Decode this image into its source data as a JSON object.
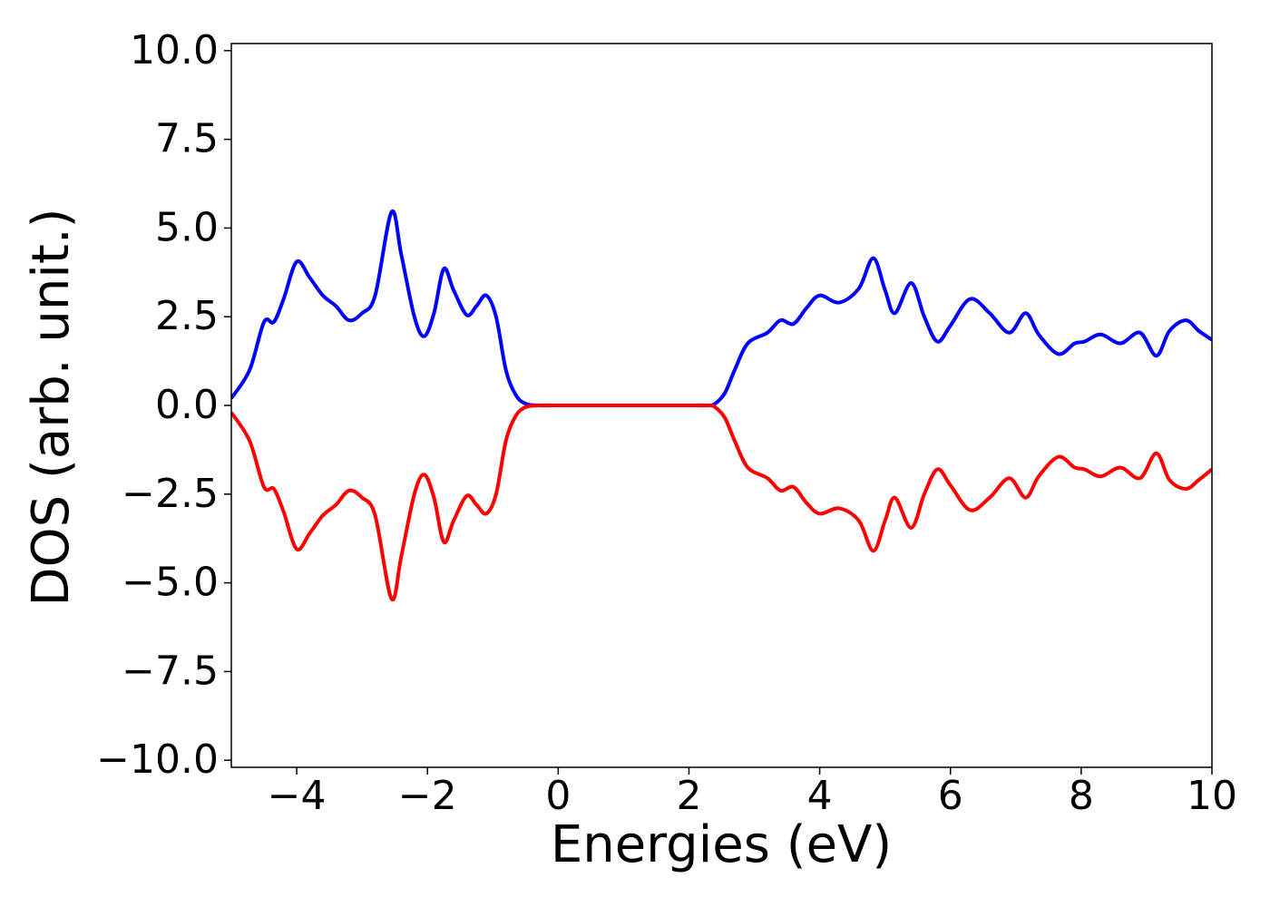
{
  "chart_data": {
    "type": "line",
    "xlabel": "Energies (eV)",
    "ylabel": "DOS (arb. unit.)",
    "x": [
      -5,
      -4.72,
      -4.5,
      -4.35,
      -4.2,
      -4.0,
      -3.8,
      -3.6,
      -3.4,
      -3.2,
      -3.0,
      -2.8,
      -2.55,
      -2.4,
      -2.2,
      -2.05,
      -1.9,
      -1.75,
      -1.6,
      -1.4,
      -1.25,
      -1.1,
      -0.95,
      -0.8,
      -0.65,
      -0.5,
      -0.3,
      0,
      1,
      2,
      2.3,
      2.4,
      2.55,
      2.7,
      2.9,
      3.2,
      3.4,
      3.6,
      3.8,
      4.0,
      4.3,
      4.6,
      4.82,
      5.0,
      5.15,
      5.4,
      5.6,
      5.8,
      6.0,
      6.3,
      6.6,
      6.9,
      7.15,
      7.35,
      7.65,
      7.9,
      8.05,
      8.3,
      8.6,
      8.9,
      9.15,
      9.35,
      9.6,
      9.8,
      10
    ],
    "series": [
      {
        "color": "#0000ff",
        "values": [
          0.2,
          1.0,
          2.35,
          2.35,
          3.0,
          4.05,
          3.6,
          3.1,
          2.8,
          2.4,
          2.6,
          3.1,
          5.45,
          4.25,
          2.5,
          1.95,
          2.6,
          3.85,
          3.25,
          2.55,
          2.8,
          3.1,
          2.5,
          1.0,
          0.3,
          0.05,
          0,
          0,
          0,
          0,
          0,
          0.05,
          0.35,
          1.0,
          1.75,
          2.05,
          2.4,
          2.3,
          2.75,
          3.1,
          2.9,
          3.3,
          4.15,
          3.25,
          2.6,
          3.45,
          2.5,
          1.8,
          2.25,
          3.0,
          2.6,
          2.05,
          2.6,
          2.0,
          1.45,
          1.75,
          1.8,
          2.0,
          1.75,
          2.05,
          1.4,
          2.1,
          2.4,
          2.1,
          1.85
        ]
      },
      {
        "color": "#ff0000",
        "values": [
          -0.2,
          -1.0,
          -2.3,
          -2.35,
          -3.0,
          -4.05,
          -3.6,
          -3.1,
          -2.8,
          -2.4,
          -2.6,
          -3.1,
          -5.45,
          -4.25,
          -2.5,
          -1.95,
          -2.6,
          -3.85,
          -3.25,
          -2.55,
          -2.8,
          -3.05,
          -2.5,
          -1.0,
          -0.3,
          -0.05,
          0,
          0,
          0,
          0,
          0,
          -0.05,
          -0.35,
          -1.0,
          -1.75,
          -2.05,
          -2.4,
          -2.3,
          -2.75,
          -3.05,
          -2.9,
          -3.25,
          -4.1,
          -3.25,
          -2.6,
          -3.45,
          -2.5,
          -1.8,
          -2.25,
          -2.95,
          -2.6,
          -2.05,
          -2.6,
          -2.0,
          -1.45,
          -1.75,
          -1.8,
          -2.0,
          -1.75,
          -2.05,
          -1.35,
          -2.1,
          -2.35,
          -2.1,
          -1.8
        ]
      }
    ],
    "xlim": [
      -5,
      10
    ],
    "xticks": [
      {
        "value": -4,
        "label": "−4"
      },
      {
        "value": -2,
        "label": "−2"
      },
      0,
      2,
      4,
      6,
      8,
      10
    ],
    "ylim": [
      -10.2,
      10.2
    ],
    "yticks": [
      {
        "value": 10,
        "label": "10.0"
      },
      7.5,
      {
        "value": 5,
        "label": "5.0"
      },
      2.5,
      {
        "value": 0,
        "label": "0.0"
      },
      {
        "value": -2.5,
        "label": "−2.5"
      },
      {
        "value": -5,
        "label": "−5.0"
      },
      {
        "value": -7.5,
        "label": "−7.5"
      },
      {
        "value": -10,
        "label": "−10.0"
      }
    ],
    "grid": false
  }
}
